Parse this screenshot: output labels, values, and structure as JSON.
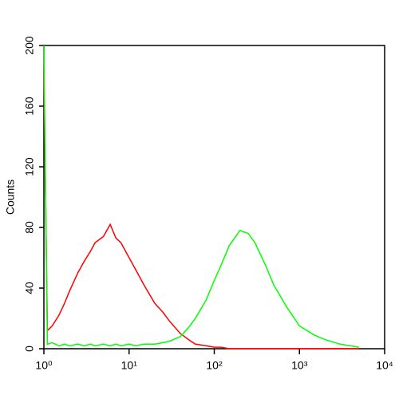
{
  "chart_data": {
    "type": "line",
    "y_label": "Counts",
    "x": [
      1,
      1.1,
      1.25,
      1.5,
      1.75,
      2,
      2.5,
      3,
      3.5,
      4,
      5,
      6,
      7,
      8,
      10,
      12,
      15,
      20,
      25,
      30,
      40,
      50,
      60,
      80,
      100,
      120,
      150,
      200,
      250,
      300,
      400,
      500,
      700,
      1000,
      1500,
      2000,
      3000,
      5000
    ],
    "series": [
      {
        "color": "#ff0000",
        "values": [
          183,
          12,
          15,
          22,
          30,
          38,
          50,
          58,
          64,
          70,
          74,
          82,
          73,
          70,
          60,
          52,
          42,
          30,
          24,
          18,
          10,
          6,
          3,
          2,
          1,
          1,
          0,
          0,
          0,
          0,
          0,
          0,
          0,
          0,
          0,
          0,
          0,
          0
        ]
      },
      {
        "color": "#00ff00",
        "values": [
          200,
          3,
          4,
          2,
          3,
          2,
          3,
          2,
          3,
          2,
          3,
          2,
          3,
          2,
          3,
          2,
          3,
          3,
          4,
          5,
          8,
          14,
          20,
          32,
          45,
          55,
          68,
          78,
          76,
          70,
          55,
          42,
          28,
          15,
          9,
          6,
          3,
          1
        ]
      }
    ],
    "xscale": "log",
    "xlim": [
      1,
      10000
    ],
    "xticks": [
      {
        "value": 1,
        "label": "10⁰"
      },
      {
        "value": 10,
        "label": "10¹"
      },
      {
        "value": 100,
        "label": "10²"
      },
      {
        "value": 1000,
        "label": "10³"
      },
      {
        "value": 10000,
        "label": "10⁴"
      }
    ],
    "ylim": [
      0,
      200
    ],
    "yticks": [
      0,
      40,
      80,
      120,
      160,
      200
    ]
  }
}
